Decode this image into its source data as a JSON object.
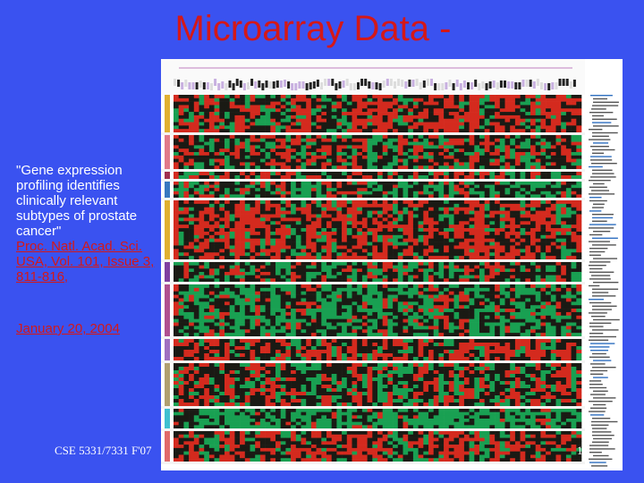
{
  "slide": {
    "title": "Microarray Data -",
    "caption": "\"Gene expression profiling identifies clinically relevant subtypes of prostate cancer\"",
    "citation": "Proc. Natl. Acad. Sci. USA, Vol. 101, Issue 3, 811-816,",
    "date": "January 20, 2004",
    "footer": "CSE 5331/7331 F'07",
    "page_number": "1"
  },
  "figure": {
    "description_icon": "heatmap-figure-icon",
    "colors": {
      "high": "#d42a1e",
      "low": "#19a052",
      "neutral": "#1a1a14",
      "divider": "#f4f4f4"
    },
    "cluster_colors": [
      "#e0b030",
      "#e07a8a",
      "#a03050",
      "#3878c0",
      "#e0b030",
      "#8040a0",
      "#b05090",
      "#a070c0",
      "#b0a070",
      "#40c0d0",
      "#e06a6a"
    ]
  }
}
